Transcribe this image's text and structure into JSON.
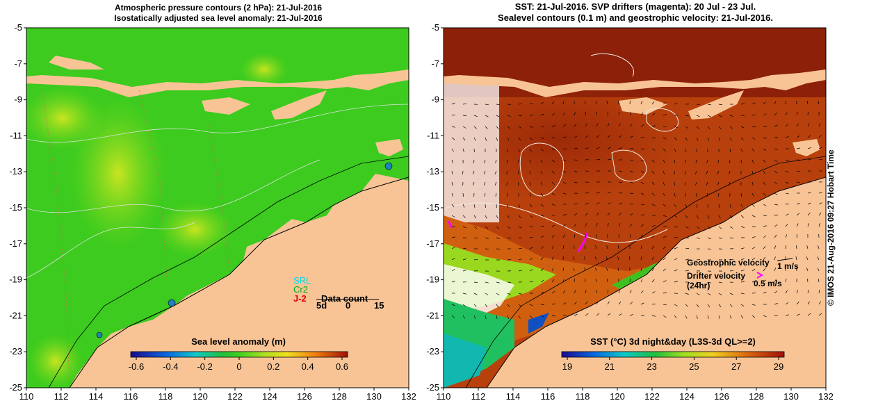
{
  "left_panel": {
    "title_line1": "Atmospheric pressure contours (2 hPa): 21-Jul-2016",
    "title_line2": "Isostatically adjusted sea level anomaly: 21-Jul-2016",
    "colorbar_label": "Sea level anomaly (m)",
    "colorbar_ticks": [
      "-0.6",
      "-0.4",
      "-0.2",
      "0",
      "0.2",
      "0.4",
      "0.6"
    ],
    "legend": {
      "srl": "SRL",
      "cr2": "Cr2",
      "j2": "J-2",
      "data_count": "Data count",
      "scale_labels": [
        "5d",
        "0",
        "15"
      ]
    },
    "colors": {
      "ocean_base": "#3ccb1e",
      "land": "#f8c496"
    }
  },
  "right_panel": {
    "title_line1": "SST: 21-Jul-2016. SVP drifters (magenta): 20 Jul - 23 Jul.",
    "title_line2": "Sealevel contours (0.1 m) and geostrophic velocity: 21-Jul-2016.",
    "colorbar_label": "SST (°C) 3d night&day (L3S-3d QL>=2)",
    "colorbar_ticks": [
      "19",
      "21",
      "23",
      "25",
      "27",
      "29"
    ],
    "geostrophic_label": "Geostrophic velocity",
    "geostrophic_scale": "1 m/s",
    "drifter_label_line1": "Drifter velocity",
    "drifter_label_line2": "(24hr)",
    "drifter_scale": "0.5 m/s",
    "colors": {
      "ocean_base": "#b8400c",
      "land": "#f8c496",
      "drifter": "#ff00ff"
    }
  },
  "axes": {
    "x_ticks": [
      "110",
      "112",
      "114",
      "116",
      "118",
      "120",
      "122",
      "124",
      "126",
      "128",
      "130",
      "132"
    ],
    "y_ticks": [
      "-5",
      "-7",
      "-9",
      "-11",
      "-13",
      "-15",
      "-17",
      "-19",
      "-21",
      "-23",
      "-25"
    ]
  },
  "credit": "© IMOS 21-Aug-2016 09:27 Hobart Time"
}
